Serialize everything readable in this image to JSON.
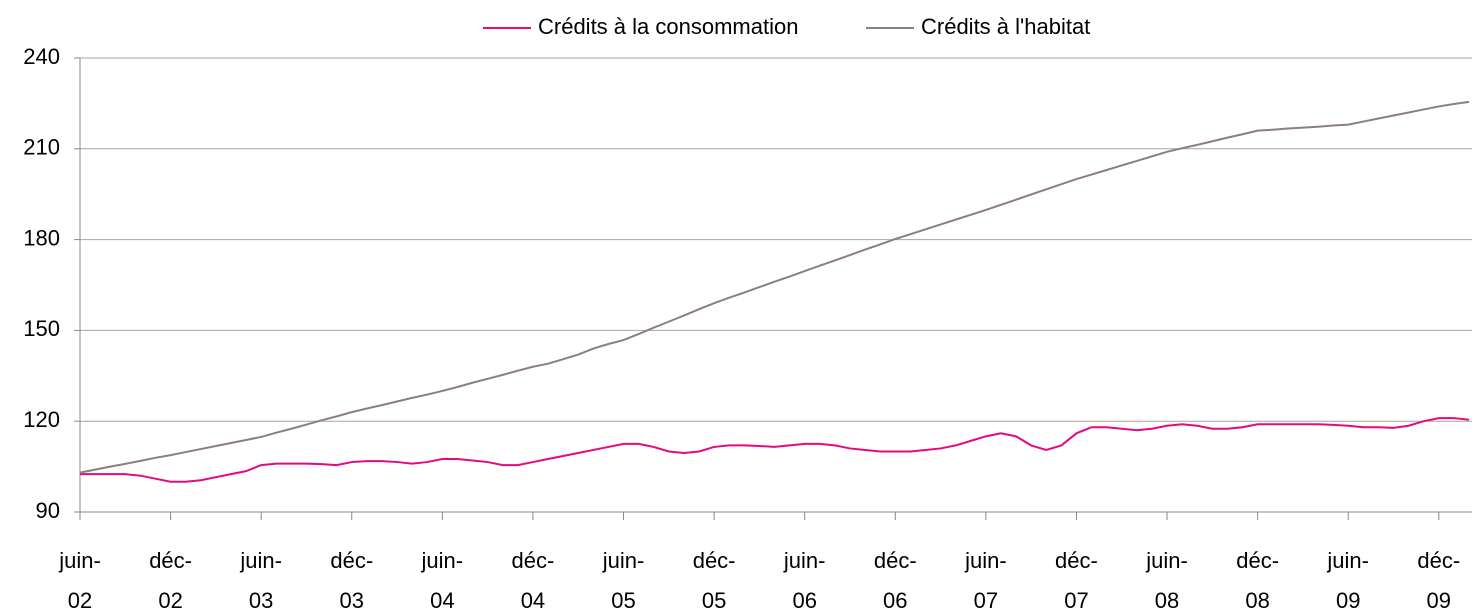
{
  "chart_data": {
    "type": "line",
    "categories": [
      "juin-02",
      null,
      null,
      null,
      null,
      null,
      "déc-02",
      null,
      null,
      null,
      null,
      null,
      "juin-03",
      null,
      null,
      null,
      null,
      null,
      "déc-03",
      null,
      null,
      null,
      null,
      null,
      "juin-04",
      null,
      null,
      null,
      null,
      null,
      "déc-04",
      null,
      null,
      null,
      null,
      null,
      "juin-05",
      null,
      null,
      null,
      null,
      null,
      "déc-05",
      null,
      null,
      null,
      null,
      null,
      "juin-06",
      null,
      null,
      null,
      null,
      null,
      "déc-06",
      null,
      null,
      null,
      null,
      null,
      "juin-07",
      null,
      null,
      null,
      null,
      null,
      "déc-07",
      null,
      null,
      null,
      null,
      null,
      "juin-08",
      null,
      null,
      null,
      null,
      null,
      "déc-08",
      null,
      null,
      null,
      null,
      null,
      "juin-09",
      null,
      null,
      null,
      null,
      null,
      "déc-09",
      null,
      null
    ],
    "series": [
      {
        "name": "Crédits à la consommation",
        "color": "#e5097f",
        "values": [
          102.5,
          102.5,
          102.5,
          102.5,
          102,
          101,
          100,
          100,
          100.5,
          101.5,
          102.5,
          103.5,
          105.5,
          106,
          106,
          106,
          105.8,
          105.5,
          106.5,
          106.8,
          106.8,
          106.5,
          106,
          106.5,
          107.5,
          107.5,
          107,
          106.5,
          105.5,
          105.5,
          106.5,
          107.5,
          108.5,
          109.5,
          110.5,
          111.5,
          112.5,
          112.5,
          111.5,
          110,
          109.5,
          110,
          111.5,
          112,
          112,
          111.8,
          111.5,
          112,
          112.5,
          112.5,
          112,
          111,
          110.5,
          110,
          110,
          110,
          110.5,
          111,
          112,
          113.5,
          115,
          116,
          115,
          112,
          110.5,
          112,
          116,
          118,
          118,
          117.5,
          117,
          117.5,
          118.5,
          119,
          118.5,
          117.5,
          117.5,
          118,
          119,
          119,
          119,
          119,
          119,
          118.8,
          118.5,
          118,
          118,
          117.8,
          118.5,
          120,
          121,
          121,
          120.5
        ]
      },
      {
        "name": "Crédits à l'habitat",
        "color": "#8c7f7c",
        "values": [
          103,
          104,
          105,
          105.9,
          106.9,
          107.9,
          108.8,
          109.8,
          110.8,
          111.8,
          112.8,
          113.8,
          114.8,
          116.2,
          117.5,
          118.9,
          120.3,
          121.6,
          123,
          124.2,
          125.3,
          126.5,
          127.7,
          128.8,
          130,
          131.3,
          132.7,
          134,
          135.3,
          136.7,
          138,
          139,
          140.5,
          142,
          144,
          145.5,
          146.8,
          148.8,
          150.9,
          152.9,
          154.9,
          157,
          159,
          160.8,
          162.5,
          164.3,
          166.1,
          167.8,
          169.6,
          171.4,
          173.1,
          174.9,
          176.7,
          178.4,
          180.2,
          181.8,
          183.4,
          185,
          186.6,
          188.2,
          189.8,
          191.5,
          193.2,
          194.9,
          196.6,
          198.3,
          200,
          201.5,
          203,
          204.5,
          206,
          207.5,
          209,
          210.2,
          211.3,
          212.5,
          213.7,
          214.8,
          216,
          216.3,
          216.7,
          217,
          217.3,
          217.7,
          218,
          219,
          220,
          221,
          222,
          223,
          224,
          224.8,
          225.5
        ]
      }
    ],
    "ylim": [
      90,
      240
    ],
    "yticks": [
      90,
      120,
      150,
      180,
      210,
      240
    ],
    "grid": true,
    "legend": "top"
  }
}
